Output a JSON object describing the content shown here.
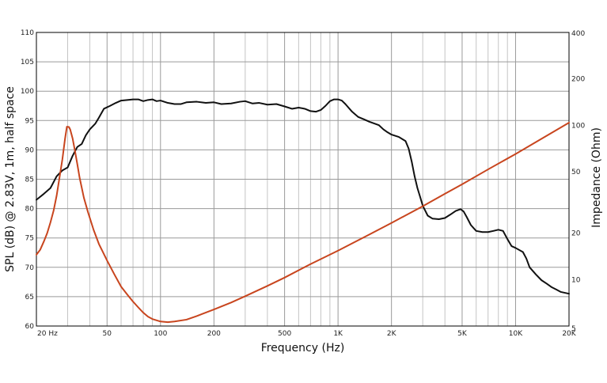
{
  "chart_data": {
    "type": "line",
    "xlabel": "Frequency (Hz)",
    "ylabel": "SPL (dB) @ 2.83V, 1m, half space",
    "y2label": "Impedance (Ohm)",
    "xscale": "log",
    "y2scale": "log",
    "xlim": [
      20,
      20000
    ],
    "ylim": [
      60,
      110
    ],
    "y2lim": [
      5,
      400
    ],
    "grid": true,
    "x_tick_labels": [
      {
        "value": 20,
        "label": "20  Hz"
      },
      {
        "value": 50,
        "label": "50"
      },
      {
        "value": 100,
        "label": "100"
      },
      {
        "value": 200,
        "label": "200"
      },
      {
        "value": 500,
        "label": "500"
      },
      {
        "value": 1000,
        "label": "1K"
      },
      {
        "value": 2000,
        "label": "2K"
      },
      {
        "value": 5000,
        "label": "5K"
      },
      {
        "value": 10000,
        "label": "10K"
      },
      {
        "value": 20000,
        "label": "20K"
      }
    ],
    "y_tick_labels": [
      "60",
      "65",
      "70",
      "75",
      "80",
      "85",
      "90",
      "95",
      "100",
      "105",
      "110"
    ],
    "y2_tick_labels": [
      {
        "value": 5,
        "label": "5"
      },
      {
        "value": 10,
        "label": "10"
      },
      {
        "value": 20,
        "label": "20"
      },
      {
        "value": 50,
        "label": "50"
      },
      {
        "value": 100,
        "label": "100"
      },
      {
        "value": 200,
        "label": "200"
      },
      {
        "value": 400,
        "label": "400"
      }
    ],
    "series": [
      {
        "color": "#111111",
        "axis": "left",
        "points": [
          [
            20,
            81.5
          ],
          [
            22,
            82.5
          ],
          [
            24,
            83.5
          ],
          [
            26,
            85.5
          ],
          [
            28,
            86.5
          ],
          [
            30,
            87
          ],
          [
            32,
            89
          ],
          [
            34,
            90.5
          ],
          [
            36,
            91
          ],
          [
            38,
            92.5
          ],
          [
            40,
            93.5
          ],
          [
            43,
            94.5
          ],
          [
            45,
            95.5
          ],
          [
            48,
            97
          ],
          [
            52,
            97.5
          ],
          [
            56,
            98
          ],
          [
            60,
            98.4
          ],
          [
            65,
            98.5
          ],
          [
            70,
            98.6
          ],
          [
            75,
            98.6
          ],
          [
            80,
            98.3
          ],
          [
            85,
            98.5
          ],
          [
            90,
            98.6
          ],
          [
            95,
            98.3
          ],
          [
            100,
            98.4
          ],
          [
            110,
            98.0
          ],
          [
            120,
            97.8
          ],
          [
            130,
            97.8
          ],
          [
            140,
            98.1
          ],
          [
            160,
            98.2
          ],
          [
            180,
            98.0
          ],
          [
            200,
            98.1
          ],
          [
            220,
            97.8
          ],
          [
            250,
            97.9
          ],
          [
            280,
            98.2
          ],
          [
            300,
            98.3
          ],
          [
            330,
            97.9
          ],
          [
            360,
            98.0
          ],
          [
            400,
            97.7
          ],
          [
            450,
            97.8
          ],
          [
            500,
            97.4
          ],
          [
            550,
            97.0
          ],
          [
            600,
            97.2
          ],
          [
            650,
            97.0
          ],
          [
            700,
            96.6
          ],
          [
            750,
            96.5
          ],
          [
            800,
            96.8
          ],
          [
            850,
            97.5
          ],
          [
            900,
            98.3
          ],
          [
            950,
            98.6
          ],
          [
            1000,
            98.6
          ],
          [
            1050,
            98.4
          ],
          [
            1100,
            97.8
          ],
          [
            1200,
            96.5
          ],
          [
            1300,
            95.6
          ],
          [
            1400,
            95.2
          ],
          [
            1500,
            94.8
          ],
          [
            1600,
            94.5
          ],
          [
            1700,
            94.2
          ],
          [
            1800,
            93.5
          ],
          [
            1900,
            93.0
          ],
          [
            2000,
            92.6
          ],
          [
            2200,
            92.2
          ],
          [
            2400,
            91.5
          ],
          [
            2500,
            90.2
          ],
          [
            2600,
            88.0
          ],
          [
            2700,
            85.5
          ],
          [
            2800,
            83.5
          ],
          [
            2900,
            82.0
          ],
          [
            3000,
            80.5
          ],
          [
            3200,
            78.8
          ],
          [
            3400,
            78.3
          ],
          [
            3700,
            78.2
          ],
          [
            4000,
            78.4
          ],
          [
            4300,
            79.0
          ],
          [
            4600,
            79.6
          ],
          [
            4900,
            79.9
          ],
          [
            5100,
            79.5
          ],
          [
            5300,
            78.6
          ],
          [
            5600,
            77.2
          ],
          [
            6000,
            76.2
          ],
          [
            6500,
            76.0
          ],
          [
            7000,
            76.0
          ],
          [
            7500,
            76.2
          ],
          [
            8000,
            76.4
          ],
          [
            8500,
            76.2
          ],
          [
            9000,
            74.8
          ],
          [
            9500,
            73.6
          ],
          [
            10000,
            73.3
          ],
          [
            11000,
            72.6
          ],
          [
            11500,
            71.5
          ],
          [
            12000,
            70.0
          ],
          [
            13000,
            68.8
          ],
          [
            14000,
            67.8
          ],
          [
            15000,
            67.2
          ],
          [
            16000,
            66.6
          ],
          [
            17000,
            66.2
          ],
          [
            18000,
            65.8
          ],
          [
            20000,
            65.5
          ]
        ]
      },
      {
        "color": "#c8451e",
        "axis": "right",
        "points": [
          [
            20,
            14.5
          ],
          [
            21,
            15.6
          ],
          [
            22,
            17.6
          ],
          [
            23,
            20.0
          ],
          [
            24,
            23.5
          ],
          [
            25,
            28.0
          ],
          [
            26,
            35.0
          ],
          [
            27,
            46.0
          ],
          [
            28,
            60.0
          ],
          [
            29,
            82.0
          ],
          [
            29.7,
            98.0
          ],
          [
            30.5,
            97.5
          ],
          [
            31,
            94.0
          ],
          [
            32,
            82.0
          ],
          [
            33,
            68.0
          ],
          [
            34,
            56.0
          ],
          [
            35,
            46.0
          ],
          [
            37,
            34.0
          ],
          [
            39,
            27.5
          ],
          [
            42,
            21.0
          ],
          [
            45,
            17.0
          ],
          [
            50,
            13.3
          ],
          [
            55,
            10.8
          ],
          [
            60,
            9.0
          ],
          [
            65,
            8.0
          ],
          [
            70,
            7.2
          ],
          [
            75,
            6.6
          ],
          [
            80,
            6.1
          ],
          [
            85,
            5.75
          ],
          [
            90,
            5.55
          ],
          [
            100,
            5.35
          ],
          [
            110,
            5.3
          ],
          [
            120,
            5.35
          ],
          [
            140,
            5.5
          ],
          [
            160,
            5.8
          ],
          [
            200,
            6.4
          ],
          [
            250,
            7.1
          ],
          [
            300,
            7.8
          ],
          [
            400,
            9.1
          ],
          [
            500,
            10.3
          ],
          [
            700,
            12.6
          ],
          [
            1000,
            15.4
          ],
          [
            1500,
            19.6
          ],
          [
            2000,
            23.3
          ],
          [
            3000,
            29.9
          ],
          [
            4000,
            36.0
          ],
          [
            5000,
            41.5
          ],
          [
            7000,
            51.8
          ],
          [
            10000,
            65.2
          ],
          [
            14000,
            81.8
          ],
          [
            20000,
            104.0
          ]
        ]
      }
    ]
  }
}
